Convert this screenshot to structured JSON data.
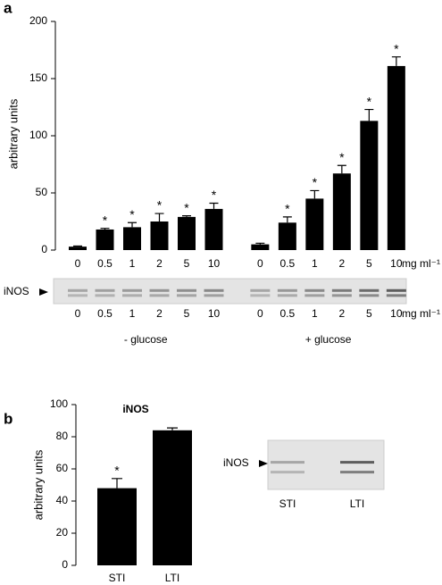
{
  "chart_data": [
    {
      "type": "bar",
      "panel": "a",
      "ylabel": "arbitrary units",
      "categories": [
        "0",
        "0.5",
        "1",
        "2",
        "5",
        "10",
        "0",
        "0.5",
        "1",
        "2",
        "5",
        "10"
      ],
      "values": [
        3,
        18,
        20,
        25,
        29,
        36,
        5,
        24,
        45,
        67,
        113,
        161
      ],
      "errors": [
        0.5,
        1,
        4,
        7,
        1,
        5,
        1,
        5,
        7,
        7,
        10,
        8
      ],
      "significance": [
        null,
        "*",
        "*",
        "*",
        "*",
        "*",
        null,
        "*",
        "*",
        "*",
        "*",
        "*"
      ],
      "x_unit": "mg ml⁻¹",
      "group_labels": [
        "- glucose",
        "+ glucose"
      ],
      "blot_label": "iNOS",
      "color": "#000000",
      "ylim": [
        0,
        200
      ],
      "yticks": [
        0,
        50,
        100,
        150,
        200
      ]
    },
    {
      "type": "bar",
      "panel": "b",
      "title": "iNOS",
      "ylabel": "arbitrary units",
      "categories": [
        "STI",
        "LTI"
      ],
      "values": [
        48,
        84
      ],
      "errors": [
        6,
        1.5
      ],
      "significance": [
        "*",
        null
      ],
      "blot_label": "iNOS",
      "color": "#000000",
      "ylim": [
        0,
        100
      ],
      "yticks": [
        0,
        20,
        40,
        60,
        80,
        100
      ]
    }
  ]
}
